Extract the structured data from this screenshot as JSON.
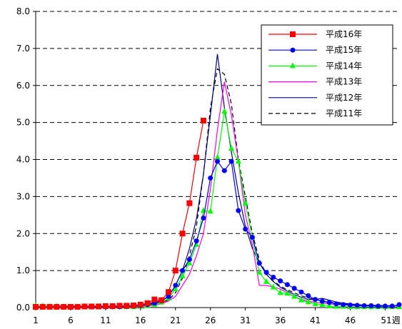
{
  "chart_data": {
    "type": "line",
    "title": "",
    "xlabel": "",
    "ylabel": "",
    "x_unit_suffix": "週",
    "xlim": [
      1,
      53
    ],
    "ylim": [
      0,
      8
    ],
    "y_ticks": [
      0,
      1,
      2,
      3,
      4,
      5,
      6,
      7,
      8
    ],
    "y_tick_labels": [
      "0.0",
      "1.0",
      "2.0",
      "3.0",
      "4.0",
      "5.0",
      "6.0",
      "7.0",
      "8.0"
    ],
    "x_ticks": [
      1,
      6,
      11,
      16,
      21,
      26,
      31,
      36,
      41,
      46,
      51
    ],
    "x_tick_labels": [
      "1",
      "6",
      "11",
      "16",
      "21",
      "26",
      "31",
      "36",
      "41",
      "46",
      "51"
    ],
    "grid": "horizontal dashed",
    "legend_position": "top-right",
    "series": [
      {
        "name": "平成16年",
        "color": "#ff0000",
        "marker": "square",
        "line_style": "solid",
        "x": [
          1,
          2,
          3,
          4,
          5,
          6,
          7,
          8,
          9,
          10,
          11,
          12,
          13,
          14,
          15,
          16,
          17,
          18,
          19,
          20,
          21,
          22,
          23,
          24,
          25
        ],
        "values": [
          0.02,
          0.02,
          0.02,
          0.02,
          0.02,
          0.02,
          0.02,
          0.03,
          0.03,
          0.03,
          0.04,
          0.04,
          0.05,
          0.05,
          0.06,
          0.08,
          0.12,
          0.22,
          0.2,
          0.42,
          1.0,
          2.0,
          2.82,
          4.05,
          5.05
        ]
      },
      {
        "name": "平成15年",
        "color": "#0000ff",
        "marker": "circle",
        "line_style": "solid",
        "x": [
          1,
          2,
          3,
          4,
          5,
          6,
          7,
          8,
          9,
          10,
          11,
          12,
          13,
          14,
          15,
          16,
          17,
          18,
          19,
          20,
          21,
          22,
          23,
          24,
          25,
          26,
          27,
          28,
          29,
          30,
          31,
          32,
          33,
          34,
          35,
          36,
          37,
          38,
          39,
          40,
          41,
          42,
          43,
          44,
          45,
          46,
          47,
          48,
          49,
          50,
          51,
          52,
          53
        ],
        "values": [
          0.02,
          0.02,
          0.02,
          0.02,
          0.02,
          0.02,
          0.02,
          0.02,
          0.02,
          0.02,
          0.02,
          0.02,
          0.02,
          0.03,
          0.04,
          0.05,
          0.08,
          0.12,
          0.18,
          0.3,
          0.6,
          1.0,
          1.3,
          1.8,
          2.42,
          3.5,
          3.95,
          3.7,
          3.95,
          2.62,
          2.12,
          1.9,
          1.2,
          0.95,
          0.82,
          0.72,
          0.62,
          0.52,
          0.42,
          0.32,
          0.22,
          0.17,
          0.14,
          0.1,
          0.08,
          0.07,
          0.06,
          0.05,
          0.05,
          0.04,
          0.04,
          0.04,
          0.08
        ]
      },
      {
        "name": "平成14年",
        "color": "#00ff00",
        "marker": "triangle",
        "line_style": "solid",
        "x": [
          1,
          2,
          3,
          4,
          5,
          6,
          7,
          8,
          9,
          10,
          11,
          12,
          13,
          14,
          15,
          16,
          17,
          18,
          19,
          20,
          21,
          22,
          23,
          24,
          25,
          26,
          27,
          28,
          29,
          30,
          31,
          32,
          33,
          34,
          35,
          36,
          37,
          38,
          39,
          40,
          41,
          42,
          43,
          44,
          45,
          46,
          47,
          48,
          49,
          50,
          51,
          52,
          53
        ],
        "values": [
          0.05,
          0.04,
          0.03,
          0.03,
          0.02,
          0.02,
          0.02,
          0.02,
          0.02,
          0.02,
          0.02,
          0.02,
          0.02,
          0.02,
          0.02,
          0.03,
          0.05,
          0.08,
          0.14,
          0.25,
          0.5,
          0.85,
          1.2,
          1.7,
          2.62,
          2.6,
          4.05,
          5.3,
          4.3,
          3.95,
          2.82,
          1.9,
          0.95,
          0.7,
          0.55,
          0.4,
          0.38,
          0.3,
          0.2,
          0.15,
          0.1,
          0.08,
          0.04,
          0.03,
          0.03,
          0.02,
          0.02,
          0.02,
          0.02,
          0.02,
          0.02,
          0.02,
          0.02
        ]
      },
      {
        "name": "平成13年",
        "color": "#ff00ff",
        "marker": "none",
        "line_style": "solid",
        "x": [
          1,
          2,
          3,
          4,
          5,
          6,
          7,
          8,
          9,
          10,
          11,
          12,
          13,
          14,
          15,
          16,
          17,
          18,
          19,
          20,
          21,
          22,
          23,
          24,
          25,
          26,
          27,
          28,
          29,
          30,
          31,
          32,
          33,
          34,
          35,
          36,
          37,
          38,
          39,
          40,
          41,
          42,
          43,
          44,
          45,
          46,
          47,
          48,
          49,
          50,
          51,
          52,
          53
        ],
        "values": [
          0.03,
          0.03,
          0.03,
          0.02,
          0.02,
          0.02,
          0.02,
          0.02,
          0.02,
          0.02,
          0.02,
          0.02,
          0.02,
          0.02,
          0.02,
          0.03,
          0.04,
          0.06,
          0.1,
          0.18,
          0.3,
          0.6,
          0.9,
          1.4,
          2.0,
          3.2,
          4.8,
          6.1,
          5.2,
          3.95,
          2.5,
          1.7,
          0.6,
          0.6,
          0.55,
          0.5,
          0.4,
          0.3,
          0.22,
          0.18,
          0.14,
          0.12,
          0.1,
          0.08,
          0.07,
          0.06,
          0.05,
          0.05,
          0.04,
          0.04,
          0.04,
          0.04,
          0.04
        ]
      },
      {
        "name": "平成12年",
        "color": "#000080",
        "marker": "none",
        "line_style": "solid",
        "x": [
          1,
          2,
          3,
          4,
          5,
          6,
          7,
          8,
          9,
          10,
          11,
          12,
          13,
          14,
          15,
          16,
          17,
          18,
          19,
          20,
          21,
          22,
          23,
          24,
          25,
          26,
          27,
          28,
          29,
          30,
          31,
          32,
          33,
          34,
          35,
          36,
          37,
          38,
          39,
          40,
          41,
          42,
          43,
          44,
          45,
          46,
          47,
          48,
          49,
          50,
          51,
          52,
          53
        ],
        "values": [
          0.04,
          0.04,
          0.04,
          0.04,
          0.04,
          0.04,
          0.04,
          0.04,
          0.04,
          0.04,
          0.04,
          0.04,
          0.04,
          0.05,
          0.06,
          0.08,
          0.1,
          0.15,
          0.2,
          0.3,
          0.6,
          1.0,
          1.6,
          2.4,
          3.6,
          5.2,
          6.85,
          5.4,
          4.2,
          3.1,
          2.2,
          1.6,
          1.2,
          0.9,
          0.7,
          0.55,
          0.45,
          0.35,
          0.28,
          0.22,
          0.22,
          0.25,
          0.2,
          0.15,
          0.12,
          0.1,
          0.08,
          0.07,
          0.06,
          0.06,
          0.05,
          0.05,
          0.05
        ]
      },
      {
        "name": "平成11年",
        "color": "#000000",
        "marker": "none",
        "line_style": "dashed",
        "x": [
          1,
          2,
          3,
          4,
          5,
          6,
          7,
          8,
          9,
          10,
          11,
          12,
          13,
          14,
          15,
          16,
          17,
          18,
          19,
          20,
          21,
          22,
          23,
          24,
          25,
          26,
          27,
          28,
          29,
          30,
          31,
          32,
          33,
          34,
          35,
          36,
          37,
          38,
          39,
          40,
          41,
          42,
          43,
          44,
          45,
          46,
          47,
          48,
          49,
          50,
          51,
          52,
          53
        ],
        "values": [
          0.03,
          0.03,
          0.03,
          0.03,
          0.03,
          0.03,
          0.03,
          0.03,
          0.03,
          0.03,
          0.03,
          0.03,
          0.03,
          0.03,
          0.04,
          0.05,
          0.07,
          0.1,
          0.15,
          0.2,
          0.4,
          0.8,
          1.4,
          2.2,
          3.6,
          5.4,
          6.45,
          6.3,
          5.5,
          4.0,
          3.0,
          2.0,
          1.3,
          0.9,
          0.72,
          0.58,
          0.48,
          0.4,
          0.32,
          0.26,
          0.22,
          0.18,
          0.15,
          0.12,
          0.1,
          0.08,
          0.07,
          0.06,
          0.05,
          0.05,
          0.05,
          0.05,
          0.05
        ]
      }
    ]
  }
}
